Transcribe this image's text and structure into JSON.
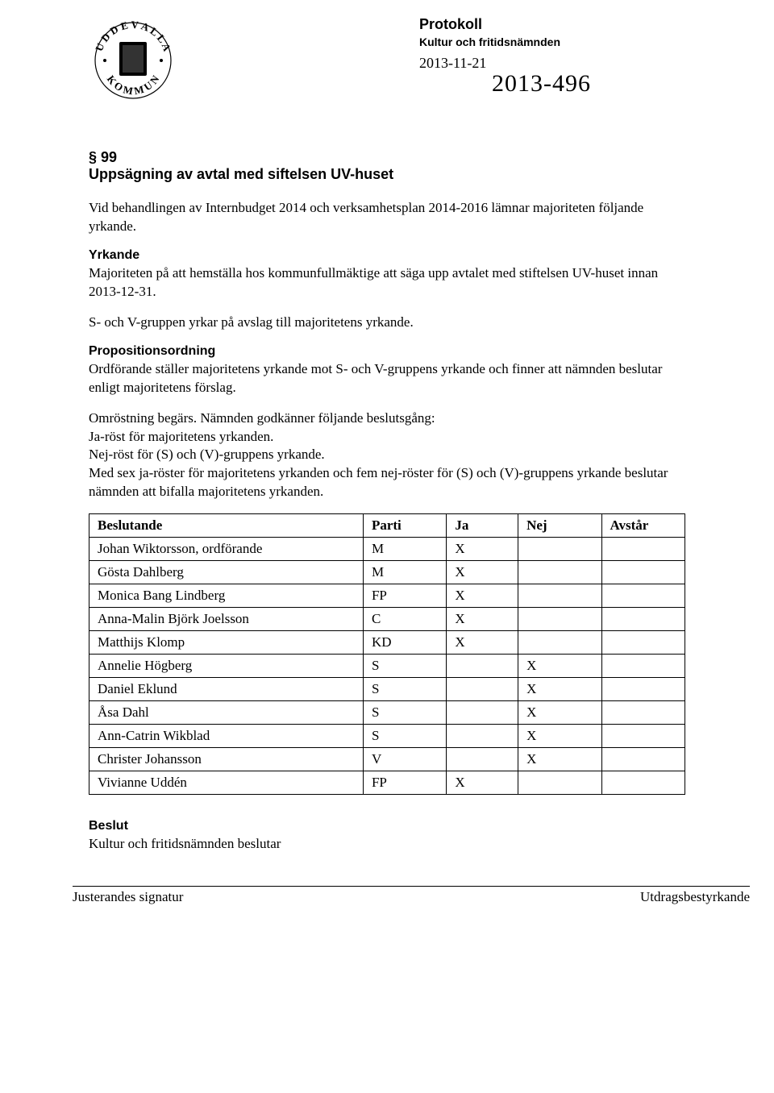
{
  "header": {
    "logo_text_top": "UDDEVALLA",
    "logo_text_bottom": "KOMMUN",
    "protocol_title": "Protokoll",
    "subtitle": "Kultur och fritidsnämnden",
    "date": "2013-11-21",
    "handwritten": "2013-496"
  },
  "section": {
    "number": "§ 99",
    "title": "Uppsägning av avtal med siftelsen UV-huset"
  },
  "intro": "Vid behandlingen av Internbudget 2014 och verksamhetsplan 2014-2016 lämnar majoriteten följande yrkande.",
  "yrkande": {
    "heading": "Yrkande",
    "text1": "Majoriteten på att hemställa hos kommunfullmäktige att säga upp avtalet med stiftelsen UV-huset innan 2013-12-31.",
    "text2": "S- och V-gruppen yrkar på avslag till majoritetens yrkande."
  },
  "proposition": {
    "heading": "Propositionsordning",
    "text1": "Ordförande ställer majoritetens yrkande mot S- och V-gruppens yrkande och finner att nämnden beslutar enligt majoritetens förslag.",
    "text2": "Omröstning begärs. Nämnden godkänner följande beslutsgång:\nJa-röst för majoritetens yrkanden.\nNej-röst för (S) och (V)-gruppens yrkande.\nMed sex ja-röster för majoritetens yrkanden och fem nej-röster för (S) och (V)-gruppens yrkande beslutar nämnden att bifalla majoritetens yrkanden."
  },
  "table": {
    "columns": [
      "Beslutande",
      "Parti",
      "Ja",
      "Nej",
      "Avstår"
    ],
    "rows": [
      [
        "Johan Wiktorsson, ordförande",
        "M",
        "X",
        "",
        ""
      ],
      [
        "Gösta Dahlberg",
        "M",
        "X",
        "",
        ""
      ],
      [
        "Monica Bang Lindberg",
        "FP",
        "X",
        "",
        ""
      ],
      [
        "Anna-Malin Björk Joelsson",
        "C",
        "X",
        "",
        ""
      ],
      [
        "Matthijs Klomp",
        "KD",
        "X",
        "",
        ""
      ],
      [
        "Annelie Högberg",
        "S",
        "",
        "X",
        ""
      ],
      [
        "Daniel Eklund",
        "S",
        "",
        "X",
        ""
      ],
      [
        "Åsa Dahl",
        "S",
        "",
        "X",
        ""
      ],
      [
        "Ann-Catrin Wikblad",
        "S",
        "",
        "X",
        ""
      ],
      [
        "Christer Johansson",
        "V",
        "",
        "X",
        ""
      ],
      [
        "Vivianne Uddén",
        "FP",
        "X",
        "",
        ""
      ]
    ]
  },
  "beslut": {
    "heading": "Beslut",
    "text": "Kultur och fritidsnämnden beslutar"
  },
  "footer": {
    "left": "Justerandes signatur",
    "right": "Utdragsbestyrkande"
  }
}
